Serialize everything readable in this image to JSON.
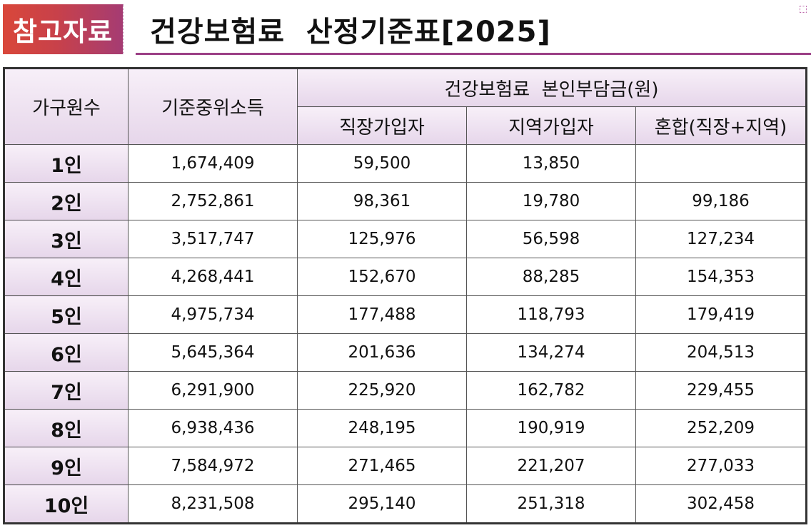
{
  "badge": "참고자료",
  "title": "건강보험료  산정기준표[2025]",
  "table": {
    "headers": {
      "household": "가구원수",
      "income": "기준중위소득",
      "premium_group": "건강보험료  본인부담금(원)",
      "employee": "직장가입자",
      "regional": "지역가입자",
      "mixed": "혼합(직장+지역)"
    },
    "rows": [
      {
        "size": "1인",
        "income": "1,674,409",
        "employee": "59,500",
        "regional": "13,850",
        "mixed": ""
      },
      {
        "size": "2인",
        "income": "2,752,861",
        "employee": "98,361",
        "regional": "19,780",
        "mixed": "99,186"
      },
      {
        "size": "3인",
        "income": "3,517,747",
        "employee": "125,976",
        "regional": "56,598",
        "mixed": "127,234"
      },
      {
        "size": "4인",
        "income": "4,268,441",
        "employee": "152,670",
        "regional": "88,285",
        "mixed": "154,353"
      },
      {
        "size": "5인",
        "income": "4,975,734",
        "employee": "177,488",
        "regional": "118,793",
        "mixed": "179,419"
      },
      {
        "size": "6인",
        "income": "5,645,364",
        "employee": "201,636",
        "regional": "134,274",
        "mixed": "204,513"
      },
      {
        "size": "7인",
        "income": "6,291,900",
        "employee": "225,920",
        "regional": "162,782",
        "mixed": "229,455"
      },
      {
        "size": "8인",
        "income": "6,938,436",
        "employee": "248,195",
        "regional": "190,919",
        "mixed": "252,209"
      },
      {
        "size": "9인",
        "income": "7,584,972",
        "employee": "271,465",
        "regional": "221,207",
        "mixed": "277,033"
      },
      {
        "size": "10인",
        "income": "8,231,508",
        "employee": "295,140",
        "regional": "251,318",
        "mixed": "302,458"
      }
    ]
  }
}
